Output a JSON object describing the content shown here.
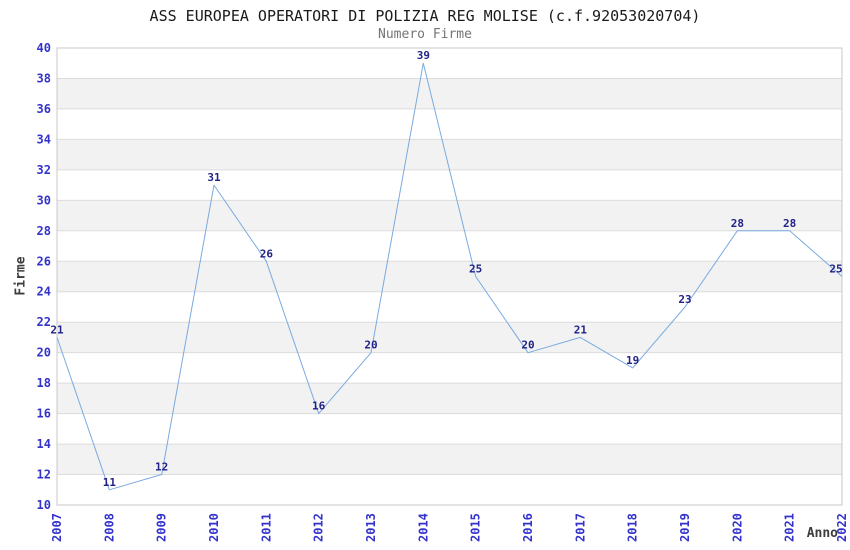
{
  "chart_data": {
    "type": "line",
    "title": "ASS EUROPEA OPERATORI DI POLIZIA REG MOLISE (c.f.92053020704)",
    "subtitle": "Numero Firme",
    "xlabel": "Anno",
    "ylabel": "Firme",
    "categories": [
      "2007",
      "2008",
      "2009",
      "2010",
      "2011",
      "2012",
      "2013",
      "2014",
      "2015",
      "2016",
      "2017",
      "2018",
      "2019",
      "2020",
      "2021",
      "2022"
    ],
    "series": [
      {
        "name": "Numero Firme",
        "values": [
          21,
          11,
          12,
          31,
          26,
          16,
          20,
          39,
          25,
          20,
          21,
          19,
          23,
          28,
          28,
          25
        ]
      }
    ],
    "ylim": [
      10,
      40
    ],
    "ytick_step": 2,
    "grid": true,
    "legend_position": "none",
    "value_labels_shown": true,
    "colors": {
      "line": "#7aaae0",
      "tick_label": "#3333cc",
      "value_label": "#222288",
      "band_light": "#ffffff",
      "band_dark": "#f2f2f2",
      "gridline": "#dcdcdc",
      "plot_border": "#c8c8c8",
      "title": "#1a1a1a",
      "subtitle": "#757575",
      "axis_title": "#3d3d3d",
      "background": "#ffffff"
    }
  }
}
